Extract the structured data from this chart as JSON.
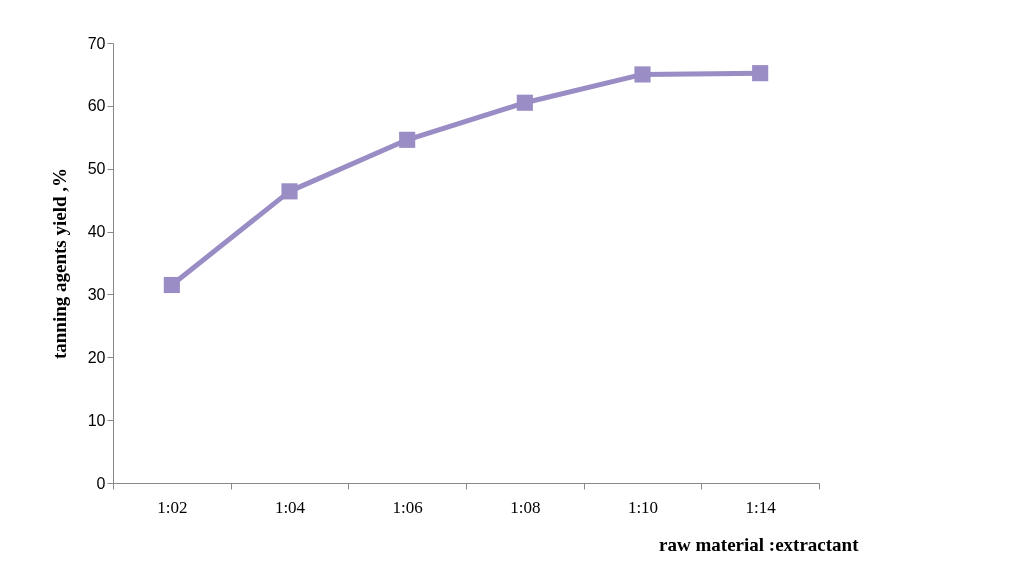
{
  "chart_data": {
    "type": "line",
    "xlabel": "raw material :extractant",
    "ylabel": "tanning agents yield ,%",
    "categories": [
      "1:02",
      "1:04",
      "1:06",
      "1:08",
      "1:10",
      "1:14"
    ],
    "series": [
      {
        "color": "#9a8cc4",
        "values": [
          31.5,
          46.4,
          54.6,
          60.5,
          65.0,
          65.2
        ]
      }
    ],
    "ylim": [
      0,
      70
    ],
    "yticks": [
      0,
      10,
      20,
      30,
      40,
      50,
      60,
      70
    ],
    "grid": false,
    "marker": "square",
    "line_style": "solid"
  }
}
